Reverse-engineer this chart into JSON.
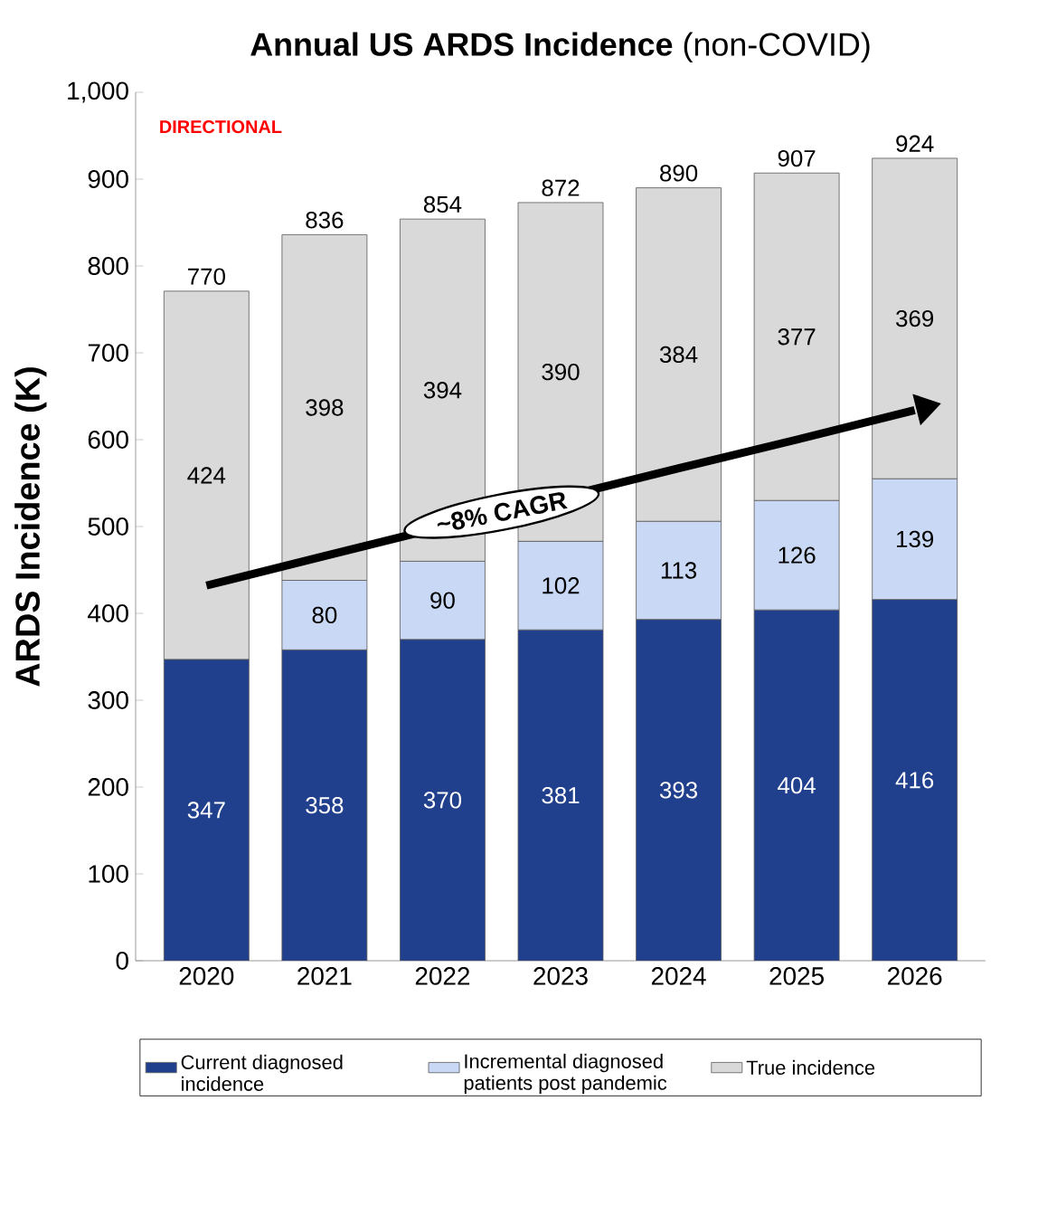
{
  "chart_data": {
    "type": "bar",
    "stacked": true,
    "title": "**Annual US ARDS Incidence** (non-COVID)",
    "ylabel": "ARDS Incidence (K)",
    "categories": [
      "2020",
      "2021",
      "2022",
      "2023",
      "2024",
      "2025",
      "2026"
    ],
    "series": [
      {
        "name": "Current diagnosed incidence",
        "color": "#203f8c",
        "values": [
          347,
          358,
          370,
          381,
          393,
          404,
          416
        ],
        "value_labels": [
          "347",
          "358",
          "370",
          "381",
          "393",
          "404",
          "416"
        ]
      },
      {
        "name": "Incremental diagnosed patients post pandemic",
        "color": "#c9d8f5",
        "values": [
          null,
          80,
          90,
          102,
          113,
          126,
          139
        ],
        "value_labels": [
          null,
          "80",
          "90",
          "102",
          "113",
          "126",
          "139"
        ]
      },
      {
        "name": "True incidence",
        "color": "#d9d9d9",
        "values": [
          424,
          398,
          394,
          390,
          384,
          377,
          369
        ],
        "value_labels": [
          "424",
          "398",
          "394",
          "390",
          "384",
          "377",
          "369"
        ]
      },
      {
        "type": "line",
        "color": "#000000",
        "values": [
          432,
          466,
          null,
          null,
          567,
          600,
          634
        ]
      }
    ],
    "totals": [
      "770",
      "836",
      "854",
      "872",
      "890",
      "907",
      "924"
    ],
    "ylim": [
      0,
      1000
    ],
    "yticks": [
      0,
      100,
      200,
      300,
      400,
      500,
      600,
      700,
      800,
      900,
      {
        "value": 1000,
        "label": "1,000"
      }
    ],
    "legend": "bottom",
    "annotations": [
      "DIRECTIONAL",
      "~8% CAGR"
    ]
  }
}
